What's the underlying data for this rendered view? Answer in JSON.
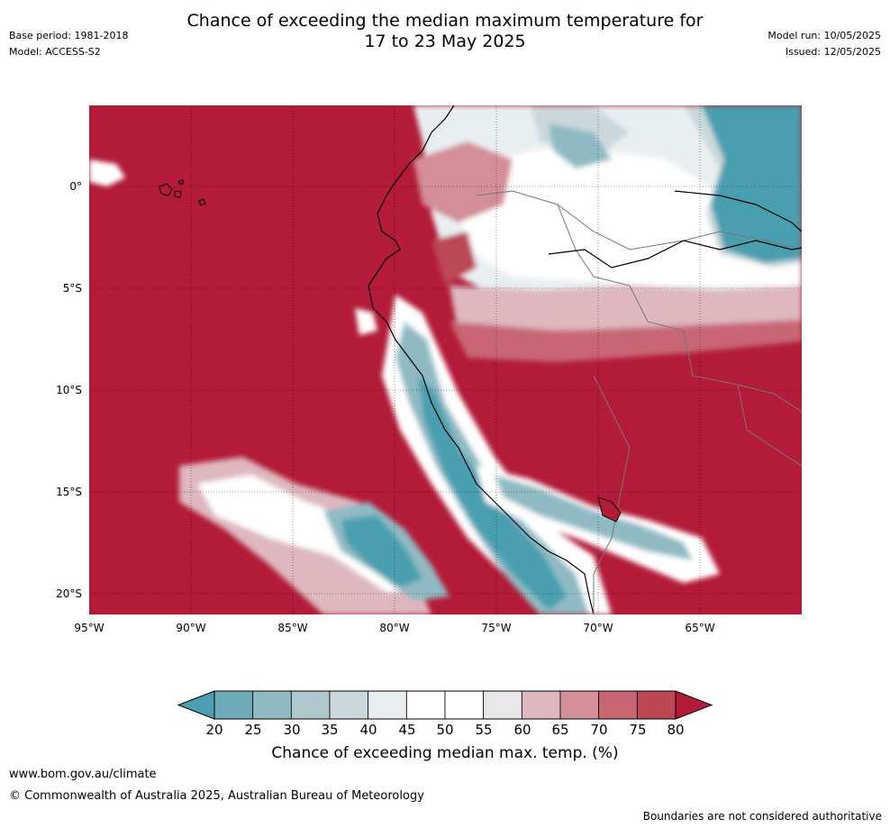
{
  "header": {
    "title": "Chance of exceeding the median maximum temperature for\n17 to 23 May 2025",
    "base_period": "Base period: 1981-2018",
    "model": "Model: ACCESS-S2",
    "model_run": "Model run: 10/05/2025",
    "issued": "Issued: 12/05/2025"
  },
  "map": {
    "lat_labels": [
      "0°",
      "5°S",
      "10°S",
      "15°S",
      "20°S"
    ],
    "lat_values": [
      0,
      -5,
      -10,
      -15,
      -20
    ],
    "lon_labels": [
      "95°W",
      "90°W",
      "85°W",
      "80°W",
      "75°W",
      "70°W",
      "65°W"
    ],
    "lon_values": [
      -95,
      -90,
      -85,
      -80,
      -75,
      -70,
      -65
    ],
    "lat_range": [
      -21,
      4
    ],
    "lon_range": [
      -95,
      -60
    ]
  },
  "colorbar": {
    "ticks": [
      "20",
      "25",
      "30",
      "35",
      "40",
      "45",
      "50",
      "55",
      "60",
      "65",
      "70",
      "75",
      "80"
    ],
    "colors": [
      "#4a9fb0",
      "#6fabb9",
      "#8fbac3",
      "#adc7cc",
      "#cbd8db",
      "#e9eff1",
      "#ffffff",
      "#ffffff",
      "#e9e7e9",
      "#deb7bf",
      "#d38e98",
      "#c86673",
      "#bc4654",
      "#b31b38"
    ],
    "label": "Chance of exceeding median max. temp. (%)"
  },
  "footer": {
    "website": "www.bom.gov.au/climate",
    "copyright": "© Commonwealth of Australia 2025, Australian Bureau of Meteorology",
    "disclaimer": "Boundaries are not considered authoritative"
  }
}
